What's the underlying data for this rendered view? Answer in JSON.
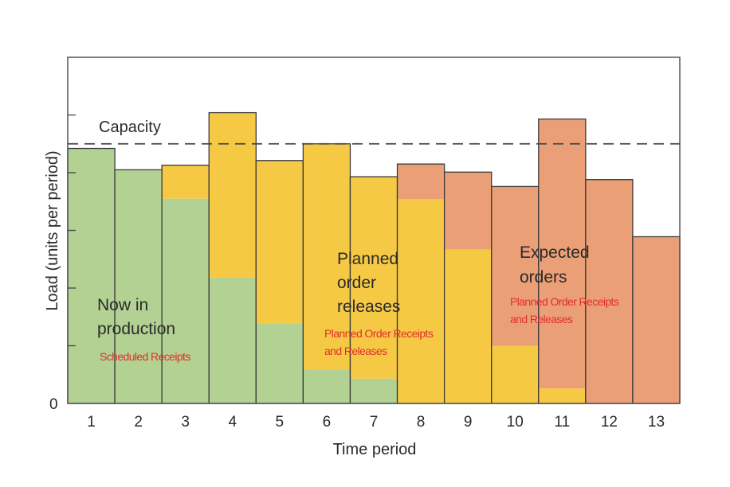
{
  "chart_data": {
    "type": "bar",
    "stacked": true,
    "xlabel": "Time period",
    "ylabel": "Load (units per period)",
    "categories": [
      "1",
      "2",
      "3",
      "4",
      "5",
      "6",
      "7",
      "8",
      "9",
      "10",
      "11",
      "12",
      "13"
    ],
    "ylim": [
      0,
      6
    ],
    "yticks_labeled": [
      "0"
    ],
    "ytick_count": 6,
    "grid": false,
    "series": [
      {
        "name": "Now in production",
        "color": "#b2d192",
        "values": [
          4.42,
          4.05,
          3.55,
          2.18,
          1.38,
          0.59,
          0.43,
          0,
          0,
          0,
          0,
          0,
          0
        ]
      },
      {
        "name": "Planned order releases",
        "color": "#f6c945",
        "values": [
          0,
          0,
          0.58,
          2.86,
          2.83,
          3.91,
          3.5,
          3.54,
          2.67,
          1.0,
          0.26,
          0,
          0
        ]
      },
      {
        "name": "Expected orders",
        "color": "#eb9f76",
        "values": [
          0,
          0,
          0,
          0,
          0,
          0,
          0,
          0.61,
          1.34,
          2.76,
          4.67,
          3.88,
          2.89
        ]
      }
    ],
    "capacity": {
      "label": "Capacity",
      "value": 4.5
    },
    "annotations": {
      "now_in_production": [
        "Now in",
        "production"
      ],
      "scheduled_receipts": "Scheduled Receipts",
      "planned_order_releases": [
        "Planned",
        "order",
        "releases"
      ],
      "planned_receipts_1": [
        "Planned Order Receipts",
        "and Releases"
      ],
      "expected_orders": [
        "Expected",
        "orders"
      ],
      "planned_receipts_2": [
        "Planned Order Receipts",
        "and Releases"
      ]
    }
  }
}
